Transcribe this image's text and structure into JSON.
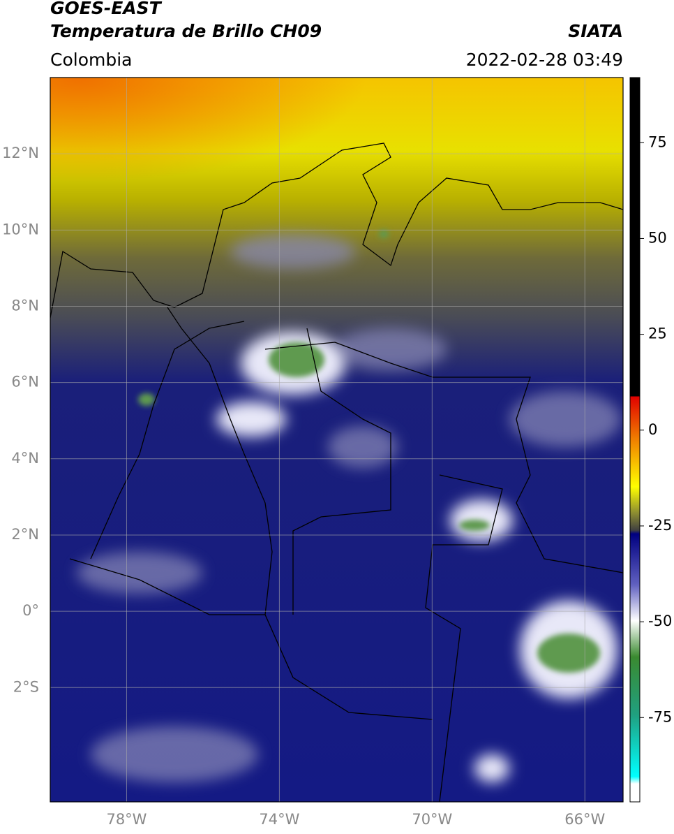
{
  "header": {
    "title": "GOES-EAST",
    "subtitle": "Temperatura de Brillo CH09",
    "source": "SIATA",
    "region": "Colombia",
    "timestamp": "2022-02-28 03:49"
  },
  "map": {
    "xlim": [
      -80,
      -65
    ],
    "ylim": [
      -5,
      14
    ],
    "xticks": [
      {
        "value": -78,
        "label": "78°W"
      },
      {
        "value": -74,
        "label": "74°W"
      },
      {
        "value": -70,
        "label": "70°W"
      },
      {
        "value": -66,
        "label": "66°W"
      }
    ],
    "yticks": [
      {
        "value": 12,
        "label": "12°N"
      },
      {
        "value": 10,
        "label": "10°N"
      },
      {
        "value": 8,
        "label": "8°N"
      },
      {
        "value": 6,
        "label": "6°N"
      },
      {
        "value": 4,
        "label": "4°N"
      },
      {
        "value": 2,
        "label": "2°N"
      },
      {
        "value": 0,
        "label": "0°"
      },
      {
        "value": -2,
        "label": "2°S"
      }
    ],
    "grid": true
  },
  "colorbar": {
    "clim": [
      -97,
      92
    ],
    "ticks": [
      75,
      50,
      25,
      0,
      -25,
      -50,
      -75
    ]
  }
}
